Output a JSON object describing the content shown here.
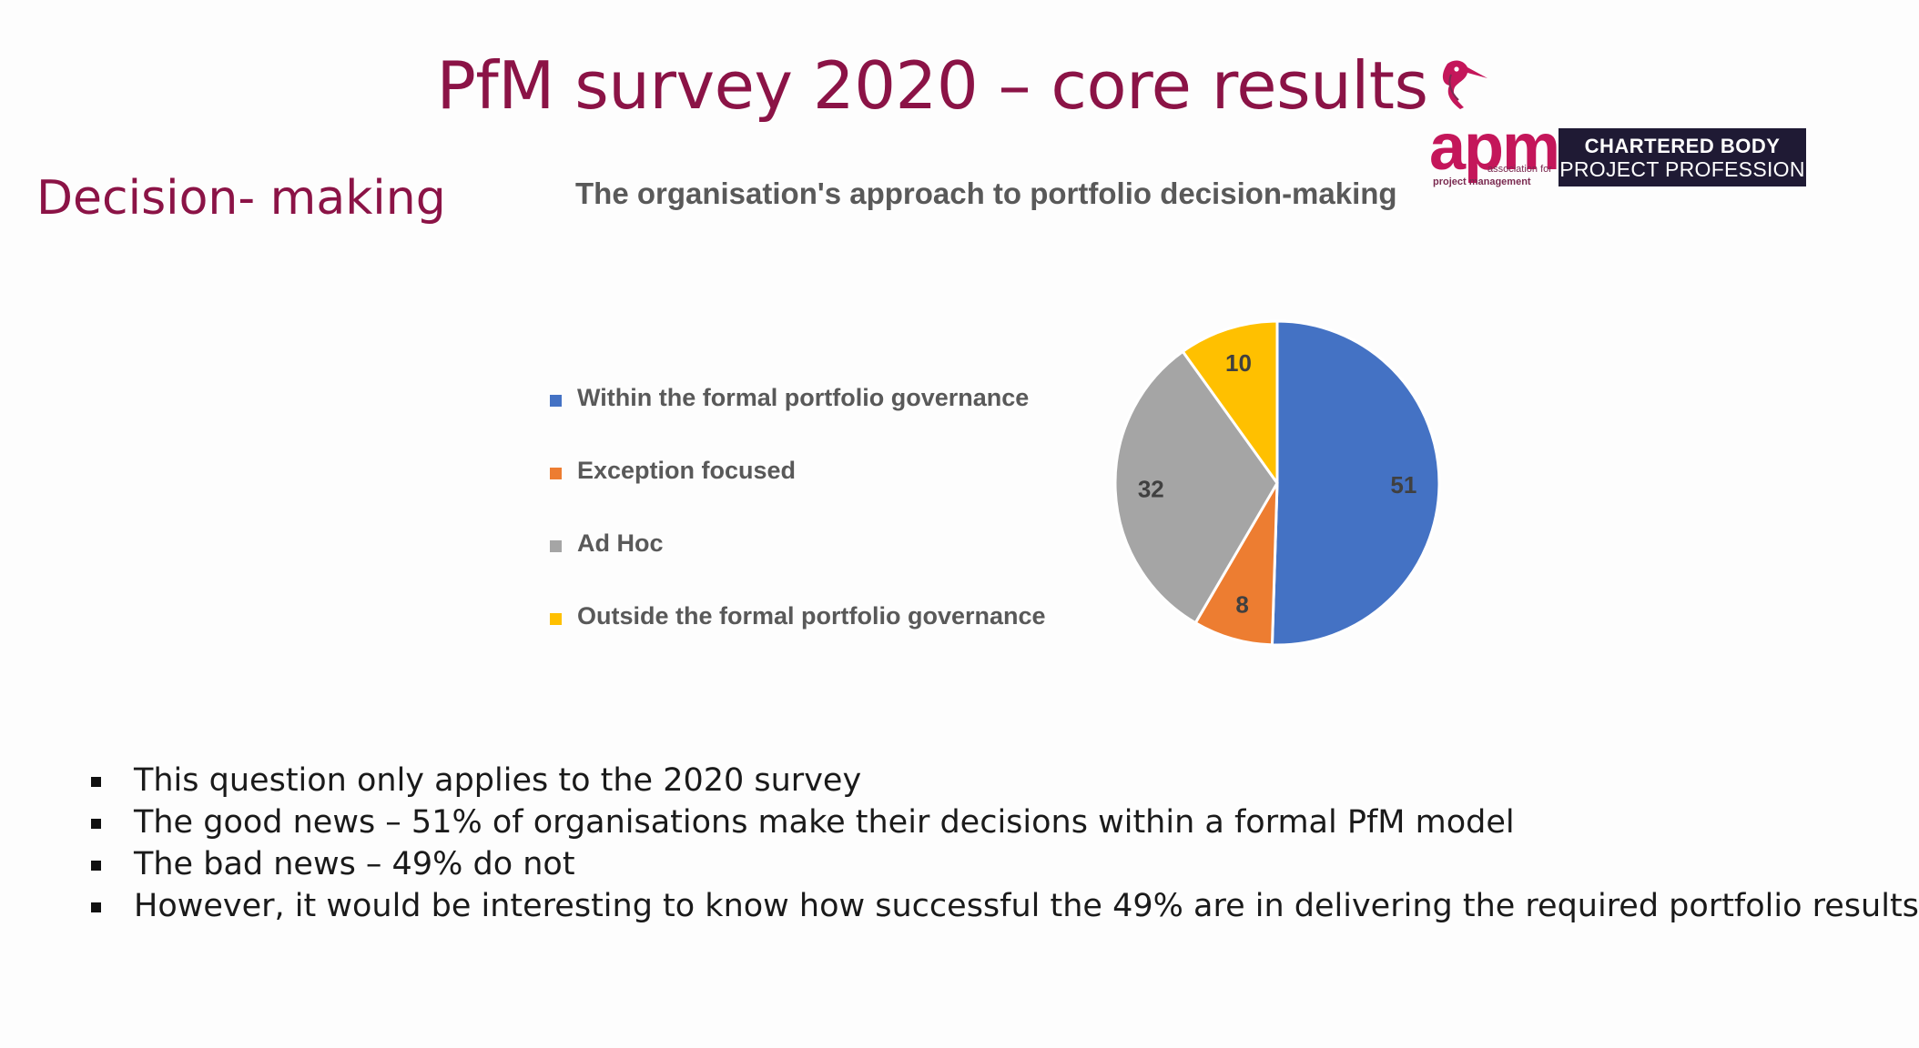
{
  "slide": {
    "title": "PfM survey 2020 – core results",
    "section": "Decision- making"
  },
  "logo": {
    "mark": "apm",
    "subtitle_line1": "association for",
    "subtitle_line2": "project management",
    "badge_line1": "CHARTERED BODY",
    "badge_line2": "PROJECT PROFESSION",
    "colors": {
      "brand": "#c4165a",
      "badge_bg": "#1f1a34"
    }
  },
  "chart_data": {
    "type": "pie",
    "title": "The organisation's approach to portfolio decision-making",
    "legend_position": "left",
    "slices": [
      {
        "label": "Within the formal portfolio governance",
        "value": 51,
        "color": "#4472c4"
      },
      {
        "label": "Exception focused",
        "value": 8,
        "color": "#ed7d31"
      },
      {
        "label": "Ad Hoc",
        "value": 32,
        "color": "#a5a5a5"
      },
      {
        "label": "Outside the formal portfolio governance",
        "value": 10,
        "color": "#ffc000"
      }
    ]
  },
  "bullets": [
    "This question only applies to the 2020 survey",
    "The good news – 51% of organisations make their decisions within a formal PfM model",
    "The bad news – 49% do not",
    "However, it would be interesting to know how successful the 49% are in delivering the required portfolio results"
  ]
}
